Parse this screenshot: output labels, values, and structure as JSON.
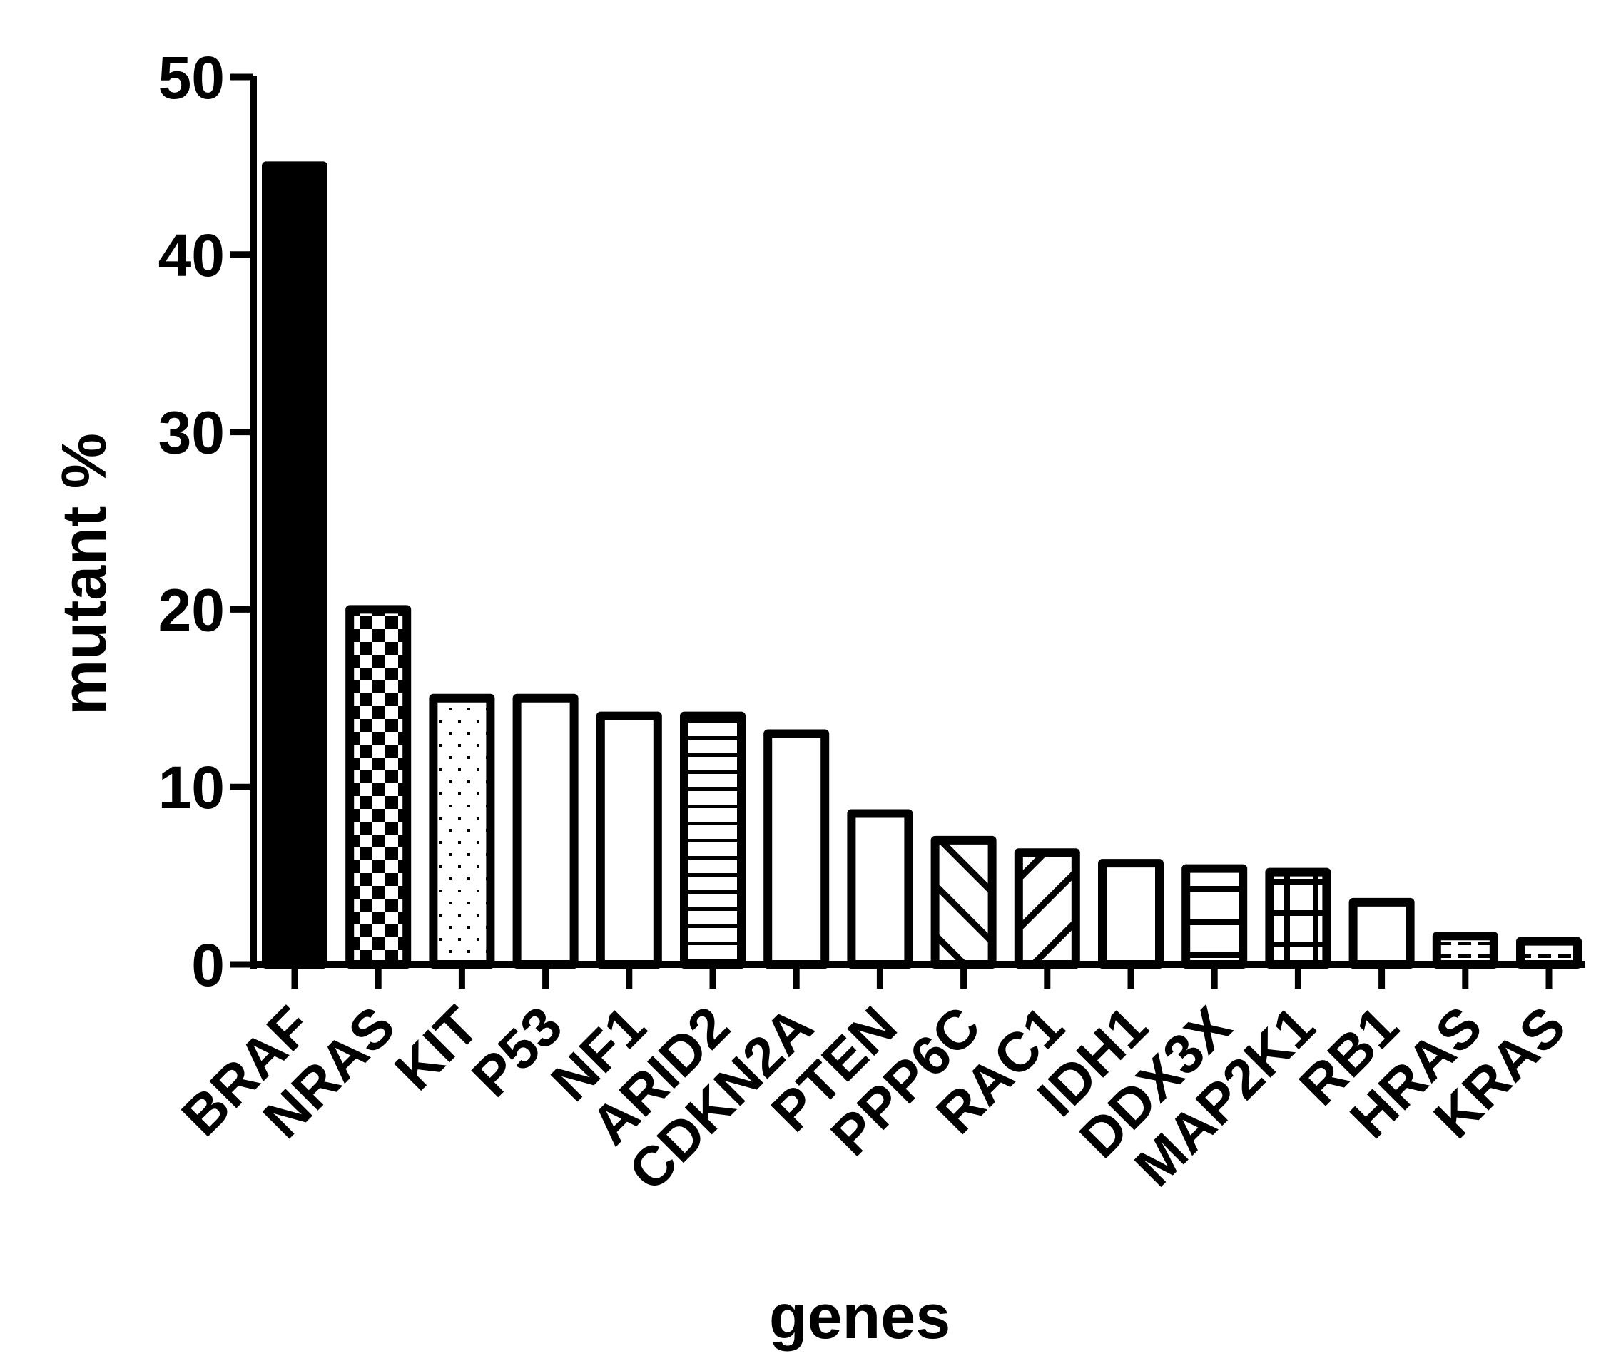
{
  "chart_data": {
    "type": "bar",
    "title": "",
    "xlabel": "genes",
    "ylabel": "mutant %",
    "ylim": [
      0,
      50
    ],
    "yticks": [
      "0",
      "10",
      "20",
      "30",
      "40",
      "50"
    ],
    "grid": false,
    "categories": [
      "BRAF",
      "NRAS",
      "KIT",
      "P53",
      "NF1",
      "ARID2",
      "CDKN2A",
      "PTEN",
      "PPP6C",
      "RAC1",
      "IDH1",
      "DDX3X",
      "MAP2K1",
      "RB1",
      "HRAS",
      "KRAS"
    ],
    "values": [
      45,
      20,
      15,
      15,
      14,
      14,
      13,
      8.5,
      7,
      6.3,
      5.7,
      5.4,
      5.2,
      3.5,
      1.6,
      1.3
    ],
    "patterns": [
      "solid",
      "checker",
      "dots",
      "none",
      "none",
      "hlines",
      "none",
      "none",
      "diag-down",
      "diag-up",
      "none",
      "hlines-wide",
      "grid",
      "none",
      "dashes",
      "dashes"
    ]
  }
}
